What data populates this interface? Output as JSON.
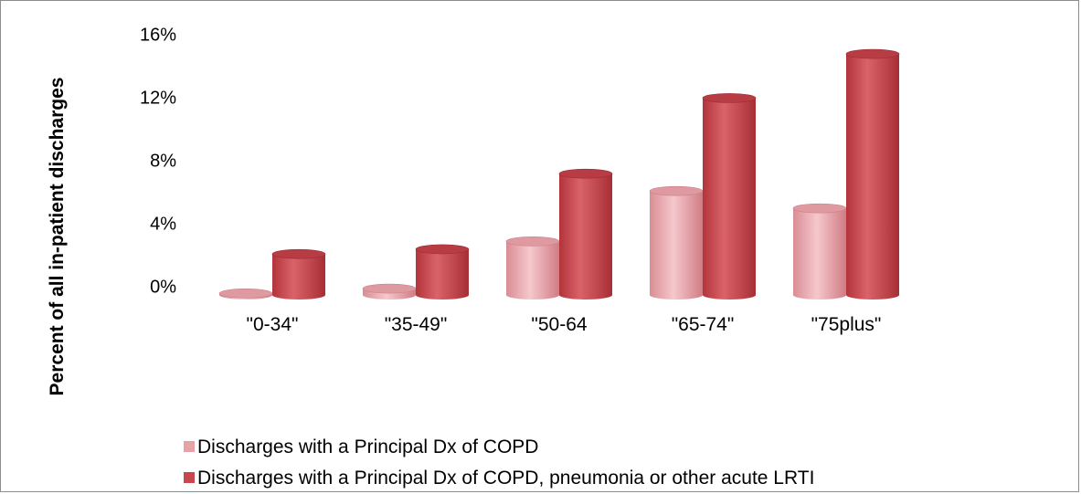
{
  "chart_data": {
    "type": "bar",
    "style": "3d-cylinder",
    "ylabel": "Percent of all in-patient discharges",
    "y_ticks": [
      "0%",
      "4%",
      "8%",
      "12%",
      "16%"
    ],
    "ylim": [
      0,
      16
    ],
    "categories": [
      "\"0-34\"",
      "\"35-49\"",
      "\"50-64",
      "\"65-74\"",
      "\"75plus\""
    ],
    "series": [
      {
        "name": "Discharges with a Principal Dx of COPD",
        "color": "#e8a1a8",
        "values": [
          0.1,
          0.4,
          3.4,
          6.6,
          5.5
        ]
      },
      {
        "name": "Discharges with a Principal Dx of COPD, pneumonia or other acute LRTI",
        "color": "#c8474e",
        "values": [
          2.6,
          2.9,
          7.7,
          12.5,
          15.3
        ]
      }
    ],
    "grid": false,
    "legend_position": "bottom-left"
  }
}
